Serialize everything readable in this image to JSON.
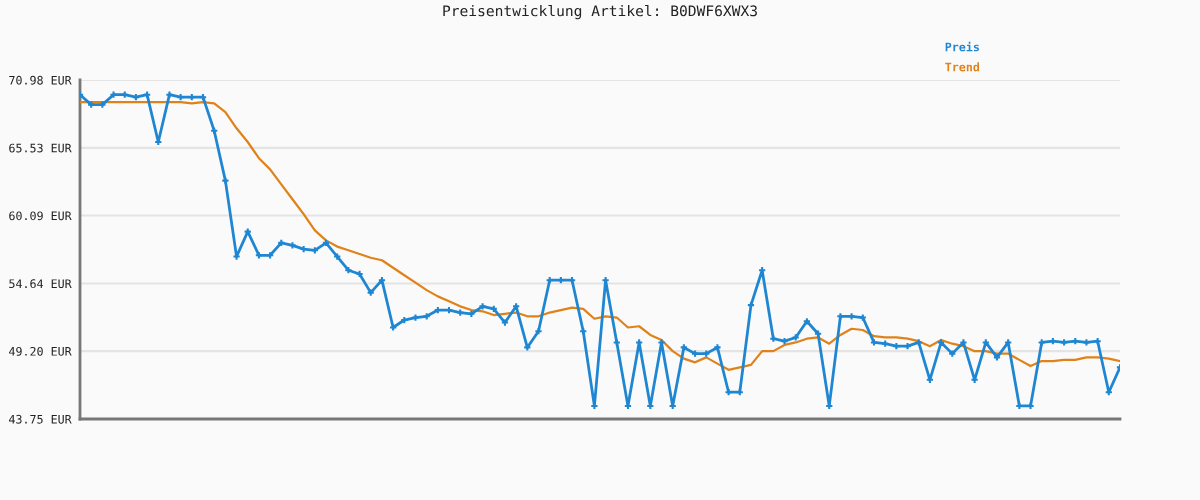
{
  "chart_data": {
    "type": "line",
    "title": "Preisentwicklung Artikel: B0DWF6XWX3",
    "categories": [
      null,
      null,
      null,
      null,
      null,
      null,
      null,
      null,
      null,
      null,
      null,
      null,
      null,
      null,
      null,
      null,
      null,
      null,
      null,
      null,
      null,
      null,
      null,
      null,
      null,
      null,
      null,
      null,
      null,
      null,
      null,
      null,
      null,
      null,
      null,
      null,
      null,
      null,
      null,
      null,
      null,
      null,
      null,
      null,
      null,
      null,
      null,
      null,
      null,
      null,
      null,
      null,
      null,
      null,
      null,
      null,
      null,
      null,
      null,
      null,
      null,
      null,
      null,
      null,
      null,
      null,
      null,
      null,
      null,
      null,
      null,
      null,
      null,
      null,
      null,
      null,
      null,
      null,
      null,
      null,
      null,
      null,
      null,
      null,
      null,
      null,
      null,
      null,
      null,
      null,
      null,
      null,
      null,
      null
    ],
    "series": [
      {
        "name": "Preis",
        "color": "#1f86d2",
        "marker": "cross",
        "values": [
          69.8,
          69.0,
          69.0,
          69.8,
          69.8,
          69.6,
          69.8,
          66.0,
          69.8,
          69.6,
          69.6,
          69.6,
          66.9,
          62.9,
          56.8,
          58.8,
          56.9,
          56.9,
          57.9,
          57.7,
          57.4,
          57.3,
          57.9,
          56.8,
          55.7,
          55.4,
          53.9,
          54.9,
          51.1,
          51.7,
          51.9,
          52.0,
          52.5,
          52.5,
          52.3,
          52.2,
          52.8,
          52.6,
          51.5,
          52.8,
          49.5,
          50.8,
          54.9,
          54.9,
          54.9,
          50.8,
          44.8,
          54.9,
          49.9,
          44.8,
          49.9,
          44.8,
          49.9,
          44.8,
          49.5,
          49.0,
          49.0,
          49.5,
          45.9,
          45.9,
          52.9,
          55.7,
          50.2,
          50.0,
          50.3,
          51.6,
          50.6,
          44.8,
          52.0,
          52.0,
          51.9,
          49.9,
          49.8,
          49.6,
          49.6,
          49.9,
          46.9,
          49.9,
          49.0,
          49.9,
          46.9,
          49.9,
          48.7,
          49.9,
          44.8,
          44.8,
          49.9,
          50.0,
          49.9,
          50.0,
          49.9,
          50.0,
          45.9,
          47.9
        ]
      },
      {
        "name": "Trend",
        "color": "#e0821a",
        "marker": "none",
        "values": [
          69.2,
          69.2,
          69.2,
          69.2,
          69.2,
          69.2,
          69.2,
          69.2,
          69.2,
          69.2,
          69.1,
          69.2,
          69.1,
          68.4,
          67.1,
          66.0,
          64.7,
          63.8,
          62.6,
          61.4,
          60.2,
          58.9,
          58.1,
          57.6,
          57.3,
          57.0,
          56.7,
          56.5,
          55.9,
          55.3,
          54.7,
          54.1,
          53.6,
          53.2,
          52.8,
          52.5,
          52.4,
          52.1,
          52.2,
          52.3,
          52.0,
          52.0,
          52.3,
          52.5,
          52.7,
          52.6,
          51.8,
          52.0,
          51.9,
          51.1,
          51.2,
          50.5,
          50.1,
          49.2,
          48.6,
          48.3,
          48.7,
          48.2,
          47.7,
          47.9,
          48.1,
          49.2,
          49.2,
          49.7,
          49.9,
          50.2,
          50.3,
          49.8,
          50.5,
          51.0,
          50.9,
          50.4,
          50.3,
          50.3,
          50.2,
          50.0,
          49.6,
          50.1,
          49.8,
          49.6,
          49.2,
          49.2,
          49.0,
          49.0,
          48.5,
          48.0,
          48.4,
          48.4,
          48.5,
          48.5,
          48.7,
          48.7,
          48.6,
          48.4
        ]
      }
    ],
    "ylim": [
      43.75,
      70.98
    ],
    "yticks": [
      {
        "value": 43.75,
        "label": "43.75 EUR"
      },
      {
        "value": 49.2,
        "label": "49.20 EUR"
      },
      {
        "value": 54.64,
        "label": "54.64 EUR"
      },
      {
        "value": 60.09,
        "label": "60.09 EUR"
      },
      {
        "value": 65.53,
        "label": "65.53 EUR"
      },
      {
        "value": 70.98,
        "label": "70.98 EUR"
      }
    ],
    "grid": "y",
    "legend": "top right",
    "tick_labels": "y"
  }
}
